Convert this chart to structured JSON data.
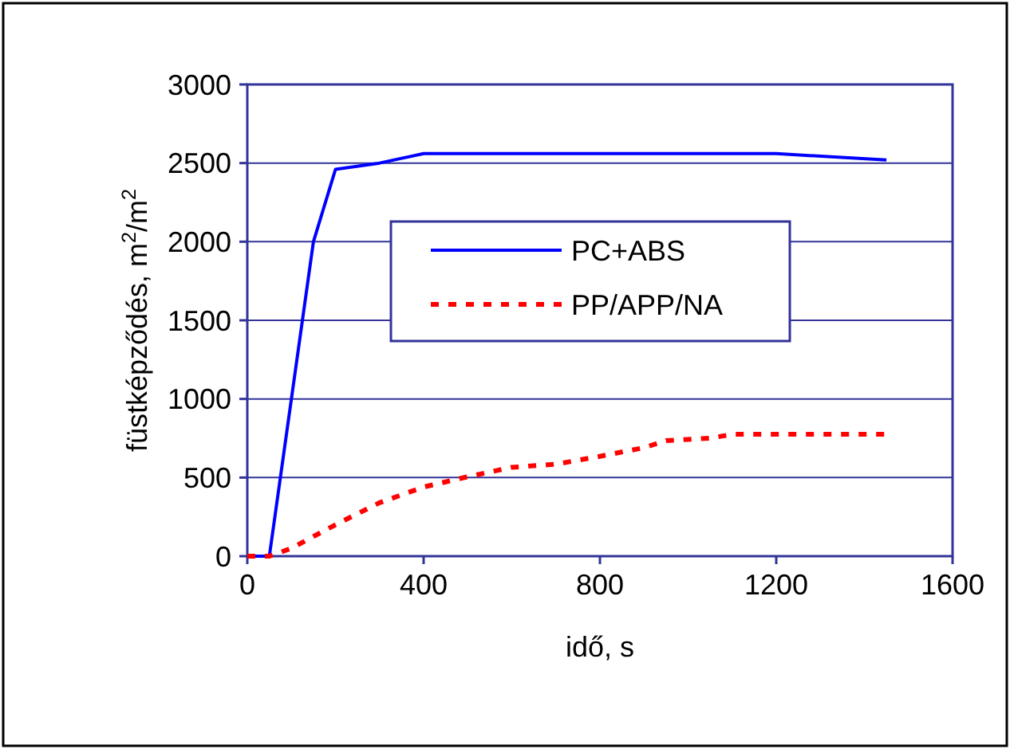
{
  "chart_data": {
    "type": "line",
    "xlabel": "idő, s",
    "ylabel": "füstképződés, m$^{2}$/m$^{2}$",
    "xlim": [
      0,
      1600
    ],
    "ylim": [
      0,
      3000
    ],
    "xticks": [
      0,
      400,
      800,
      1200,
      1600
    ],
    "yticks": [
      0,
      500,
      1000,
      1500,
      2000,
      2500,
      3000
    ],
    "grid": "y",
    "legend": "center",
    "series": [
      {
        "name": "PC+ABS",
        "color": "#0000ff",
        "line_style": "solid",
        "x": [
          0,
          50,
          100,
          150,
          200,
          300,
          400,
          1200,
          1450
        ],
        "values": [
          0,
          0,
          1000,
          2000,
          2460,
          2500,
          2560,
          2560,
          2520
        ]
      },
      {
        "name": "PP/APP/NA",
        "color": "#ff0000",
        "line_style": "dashed",
        "x": [
          0,
          50,
          100,
          200,
          300,
          400,
          500,
          600,
          700,
          800,
          900,
          950,
          1050,
          1100,
          1450
        ],
        "values": [
          0,
          0,
          50,
          200,
          340,
          440,
          505,
          565,
          585,
          635,
          690,
          735,
          750,
          775,
          775
        ]
      }
    ]
  }
}
